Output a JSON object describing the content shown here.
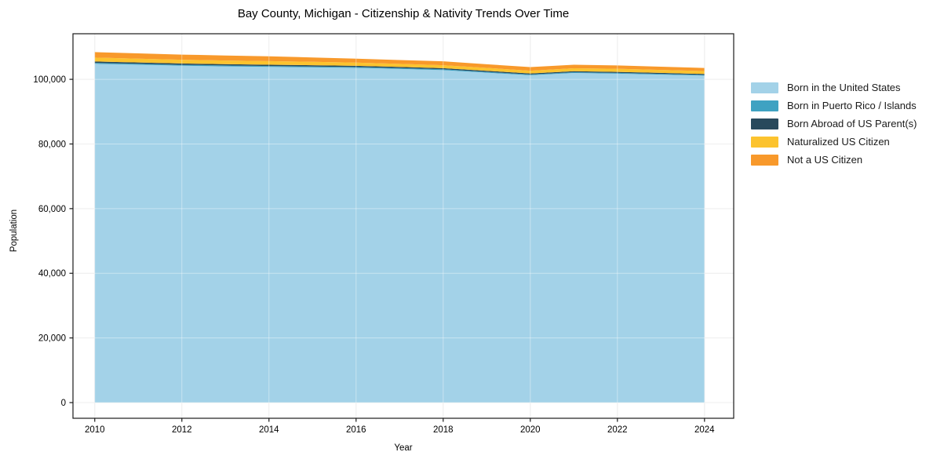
{
  "chart_data": {
    "type": "area",
    "stacked": true,
    "title": "Bay County, Michigan - Citizenship & Nativity Trends Over Time",
    "xlabel": "Year",
    "ylabel": "Population",
    "x": [
      2010,
      2011,
      2012,
      2013,
      2014,
      2015,
      2016,
      2017,
      2018,
      2019,
      2020,
      2021,
      2022,
      2023,
      2024
    ],
    "series": [
      {
        "name": "Born in the United States",
        "color": "#a3d2e8",
        "values": [
          104800,
          104500,
          104200,
          104000,
          103850,
          103700,
          103550,
          103200,
          102850,
          102050,
          101250,
          101950,
          101750,
          101450,
          101150
        ]
      },
      {
        "name": "Born in Puerto Rico / Islands",
        "color": "#3fa2c2",
        "values": [
          300,
          300,
          290,
          290,
          280,
          280,
          270,
          270,
          260,
          255,
          250,
          250,
          245,
          230,
          220
        ]
      },
      {
        "name": "Born Abroad of US Parent(s)",
        "color": "#28495c",
        "values": [
          420,
          415,
          410,
          400,
          395,
          385,
          370,
          360,
          350,
          330,
          320,
          320,
          310,
          300,
          290
        ]
      },
      {
        "name": "Naturalized US Citizen",
        "color": "#fcc32e",
        "values": [
          1200,
          1180,
          1150,
          1130,
          1100,
          1050,
          1000,
          950,
          900,
          890,
          850,
          900,
          950,
          925,
          900
        ]
      },
      {
        "name": "Not a US Citizen",
        "color": "#f8992b",
        "values": [
          1700,
          1650,
          1600,
          1550,
          1500,
          1350,
          1200,
          1200,
          1200,
          1150,
          1100,
          1100,
          1050,
          1000,
          950
        ]
      }
    ],
    "xlim": [
      2009.5,
      2024.67
    ],
    "ylim": [
      -4850,
      114100
    ],
    "xticks": [
      2010,
      2012,
      2014,
      2016,
      2018,
      2020,
      2022,
      2024
    ],
    "yticks": [
      0,
      20000,
      40000,
      60000,
      80000,
      100000
    ],
    "grid": true,
    "legend_position": "right",
    "colors": {
      "spine": "#1a1a1a",
      "gridline": "#e4e4e4",
      "grid_overlay": "rgba(255,255,255,0.4)",
      "tick_label": "#000000",
      "plot_background": "#ffffff"
    }
  }
}
